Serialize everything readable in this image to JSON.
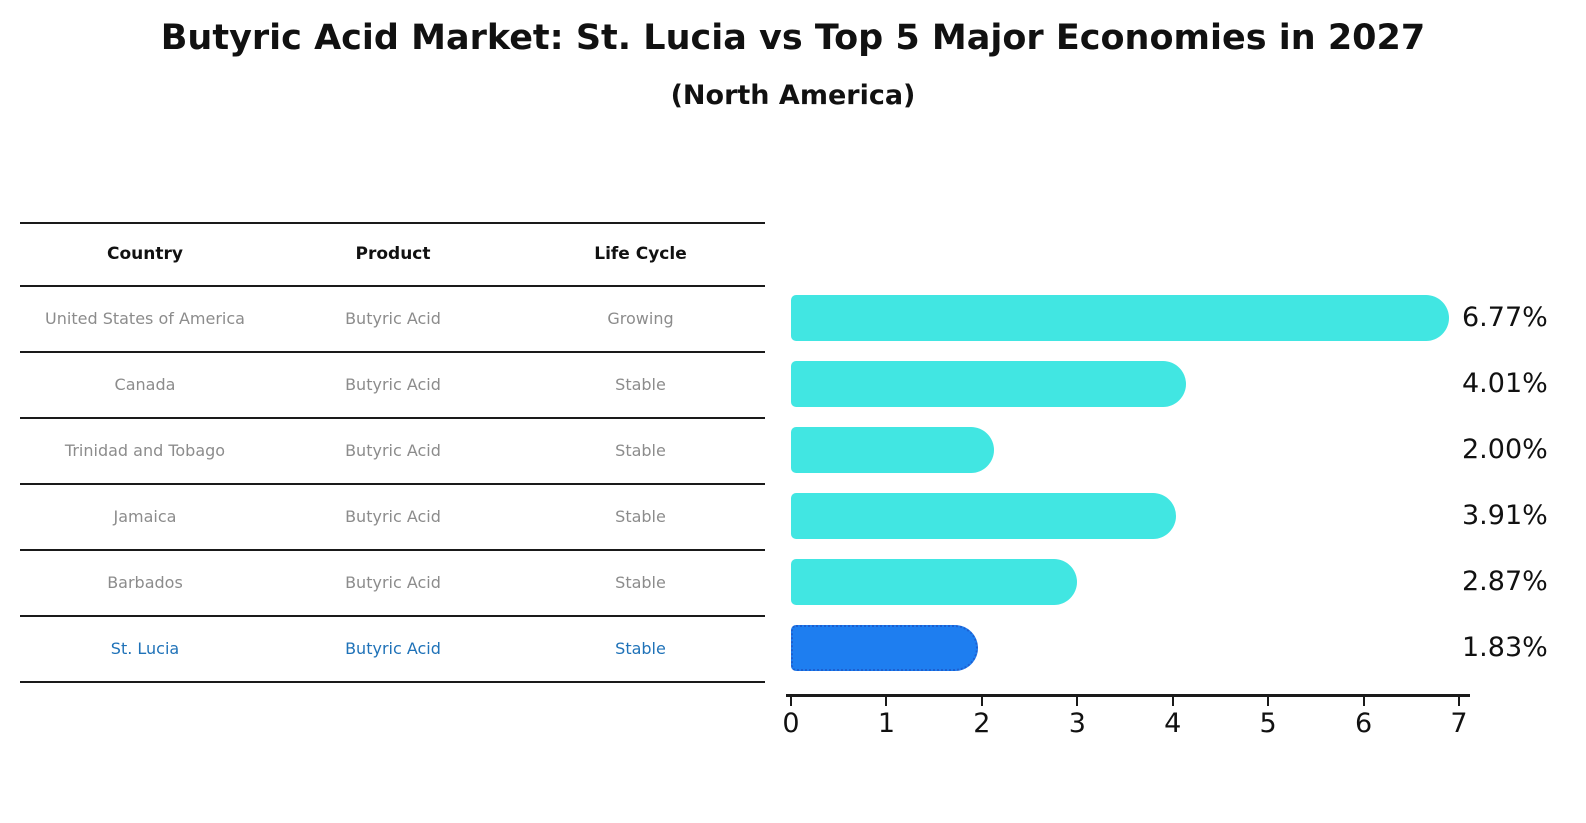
{
  "title": "Butyric Acid Market: St. Lucia vs Top 5 Major Economies in 2027",
  "subtitle": "(North America)",
  "table": {
    "columns": [
      "Country",
      "Product",
      "Life Cycle"
    ]
  },
  "colors": {
    "bar": "#41e6e2",
    "highlight_bar": "#1e7ef0",
    "highlight_border": "#1d5fd0",
    "highlight_text": "#1f72b8",
    "body_text": "#8c8c8c",
    "header_text": "#111111"
  },
  "chart_data": {
    "type": "bar",
    "orientation": "horizontal",
    "title": "Butyric Acid Market: St. Lucia vs Top 5 Major Economies in 2027",
    "subtitle": "(North America)",
    "xlabel": "",
    "ylabel": "",
    "xlim": [
      0,
      7
    ],
    "x_ticks": [
      "0",
      "1",
      "2",
      "3",
      "4",
      "5",
      "6",
      "7"
    ],
    "grid": false,
    "legend": false,
    "rows": [
      {
        "country": "United States of America",
        "product": "Butyric Acid",
        "life_cycle": "Growing",
        "value": 6.77,
        "value_label": "6.77%",
        "highlight": false
      },
      {
        "country": "Canada",
        "product": "Butyric Acid",
        "life_cycle": "Stable",
        "value": 4.01,
        "value_label": "4.01%",
        "highlight": false
      },
      {
        "country": "Trinidad and Tobago",
        "product": "Butyric Acid",
        "life_cycle": "Stable",
        "value": 2.0,
        "value_label": "2.00%",
        "highlight": false
      },
      {
        "country": "Jamaica",
        "product": "Butyric Acid",
        "life_cycle": "Stable",
        "value": 3.91,
        "value_label": "3.91%",
        "highlight": false
      },
      {
        "country": "Barbados",
        "product": "Butyric Acid",
        "life_cycle": "Stable",
        "value": 2.87,
        "value_label": "2.87%",
        "highlight": false
      },
      {
        "country": "St. Lucia",
        "product": "Butyric Acid",
        "life_cycle": "Stable",
        "value": 1.83,
        "value_label": "1.83%",
        "highlight": true
      }
    ]
  }
}
